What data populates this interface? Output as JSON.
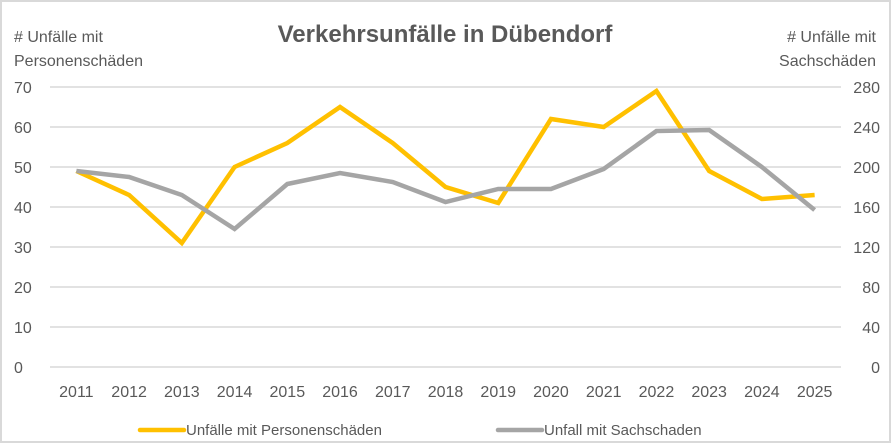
{
  "chart_data": {
    "type": "line",
    "title": "Verkehrsunfälle in Dübendorf",
    "xlabel": "",
    "ylabel": "# Unfälle mit Personenschäden",
    "ylabel_right": "# Unfälle mit Sachschäden",
    "categories": [
      "2011",
      "2012",
      "2013",
      "2014",
      "2015",
      "2016",
      "2017",
      "2018",
      "2019",
      "2020",
      "2021",
      "2022",
      "2023",
      "2024",
      "2025"
    ],
    "ylim": [
      0,
      70
    ],
    "ylim_right": [
      0,
      280
    ],
    "yticks": [
      "0",
      "10",
      "20",
      "30",
      "40",
      "50",
      "60",
      "70"
    ],
    "yticks_right": [
      "0",
      "40",
      "80",
      "120",
      "160",
      "200",
      "240",
      "280"
    ],
    "grid": true,
    "legend_position": "bottom",
    "series": [
      {
        "name": "Unfälle mit Personenschäden",
        "axis": "left",
        "color": "#FFC000",
        "values": [
          49,
          43,
          31,
          50,
          56,
          65,
          56,
          45,
          41,
          62,
          60,
          69,
          49,
          42,
          43
        ]
      },
      {
        "name": "Unfall mit Sachschaden",
        "axis": "right",
        "color": "#A5A5A5",
        "values": [
          196,
          190,
          172,
          138,
          183,
          194,
          185,
          165,
          178,
          178,
          198,
          236,
          237,
          200,
          157
        ]
      }
    ]
  }
}
